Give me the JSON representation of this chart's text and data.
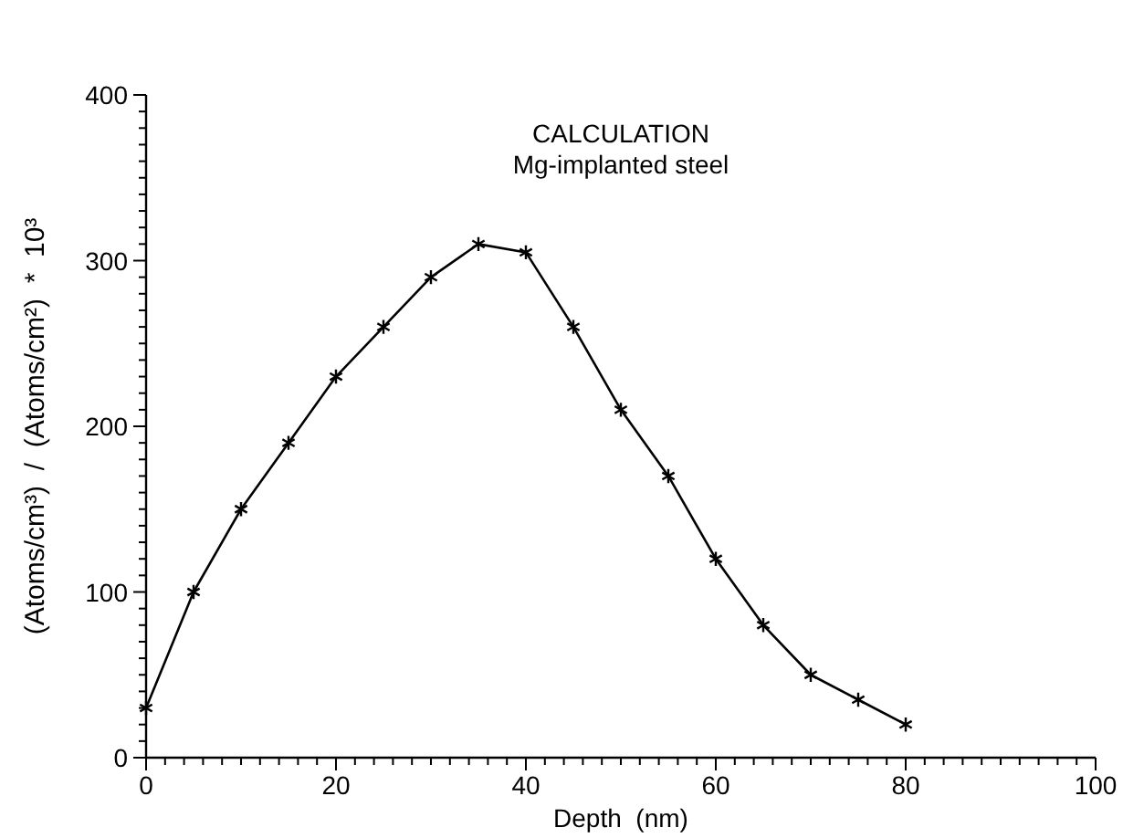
{
  "chart_data": {
    "type": "line",
    "title": "CALCULATION",
    "subtitle": "Mg-implanted steel",
    "xlabel": "Depth  (nm)",
    "ylabel": "(Atoms/cm³)  /  (Atoms/cm²)  *  10³",
    "x": [
      0,
      5,
      10,
      15,
      20,
      25,
      30,
      35,
      40,
      45,
      50,
      55,
      60,
      65,
      70,
      75,
      80
    ],
    "series": [
      {
        "color": "#000000",
        "values": [
          30,
          100,
          150,
          190,
          230,
          260,
          290,
          310,
          305,
          260,
          210,
          170,
          120,
          80,
          50,
          35,
          20
        ]
      }
    ],
    "marker": "cross",
    "line_style": "solid",
    "grid": false,
    "xlim": [
      0,
      100
    ],
    "ylim": [
      0,
      400
    ],
    "xticks": [
      0,
      {
        "value": 2,
        "label": null
      },
      {
        "value": 4,
        "label": null
      },
      {
        "value": 6,
        "label": null
      },
      {
        "value": 8,
        "label": null
      },
      {
        "value": 10,
        "label": null
      },
      {
        "value": 12,
        "label": null
      },
      {
        "value": 14,
        "label": null
      },
      {
        "value": 16,
        "label": null
      },
      {
        "value": 18,
        "label": null
      },
      20,
      {
        "value": 22,
        "label": null
      },
      {
        "value": 24,
        "label": null
      },
      {
        "value": 26,
        "label": null
      },
      {
        "value": 28,
        "label": null
      },
      {
        "value": 30,
        "label": null
      },
      {
        "value": 32,
        "label": null
      },
      {
        "value": 34,
        "label": null
      },
      {
        "value": 36,
        "label": null
      },
      {
        "value": 38,
        "label": null
      },
      40,
      {
        "value": 42,
        "label": null
      },
      {
        "value": 44,
        "label": null
      },
      {
        "value": 46,
        "label": null
      },
      {
        "value": 48,
        "label": null
      },
      {
        "value": 50,
        "label": null
      },
      {
        "value": 52,
        "label": null
      },
      {
        "value": 54,
        "label": null
      },
      {
        "value": 56,
        "label": null
      },
      {
        "value": 58,
        "label": null
      },
      60,
      {
        "value": 62,
        "label": null
      },
      {
        "value": 64,
        "label": null
      },
      {
        "value": 66,
        "label": null
      },
      {
        "value": 68,
        "label": null
      },
      {
        "value": 70,
        "label": null
      },
      {
        "value": 72,
        "label": null
      },
      {
        "value": 74,
        "label": null
      },
      {
        "value": 76,
        "label": null
      },
      {
        "value": 78,
        "label": null
      },
      80,
      {
        "value": 82,
        "label": null
      },
      {
        "value": 84,
        "label": null
      },
      {
        "value": 86,
        "label": null
      },
      {
        "value": 88,
        "label": null
      },
      {
        "value": 90,
        "label": null
      },
      {
        "value": 92,
        "label": null
      },
      {
        "value": 94,
        "label": null
      },
      {
        "value": 96,
        "label": null
      },
      {
        "value": 98,
        "label": null
      },
      100
    ],
    "yticks": [
      0,
      {
        "value": 10,
        "label": null
      },
      {
        "value": 20,
        "label": null
      },
      {
        "value": 30,
        "label": null
      },
      {
        "value": 40,
        "label": null
      },
      {
        "value": 50,
        "label": null
      },
      {
        "value": 60,
        "label": null
      },
      {
        "value": 70,
        "label": null
      },
      {
        "value": 80,
        "label": null
      },
      {
        "value": 90,
        "label": null
      },
      100,
      {
        "value": 110,
        "label": null
      },
      {
        "value": 120,
        "label": null
      },
      {
        "value": 130,
        "label": null
      },
      {
        "value": 140,
        "label": null
      },
      {
        "value": 150,
        "label": null
      },
      {
        "value": 160,
        "label": null
      },
      {
        "value": 170,
        "label": null
      },
      {
        "value": 180,
        "label": null
      },
      {
        "value": 190,
        "label": null
      },
      200,
      {
        "value": 210,
        "label": null
      },
      {
        "value": 220,
        "label": null
      },
      {
        "value": 230,
        "label": null
      },
      {
        "value": 240,
        "label": null
      },
      {
        "value": 250,
        "label": null
      },
      {
        "value": 260,
        "label": null
      },
      {
        "value": 270,
        "label": null
      },
      {
        "value": 280,
        "label": null
      },
      {
        "value": 290,
        "label": null
      },
      300,
      {
        "value": 310,
        "label": null
      },
      {
        "value": 320,
        "label": null
      },
      {
        "value": 330,
        "label": null
      },
      {
        "value": 340,
        "label": null
      },
      {
        "value": 350,
        "label": null
      },
      {
        "value": 360,
        "label": null
      },
      {
        "value": 370,
        "label": null
      },
      {
        "value": 380,
        "label": null
      },
      {
        "value": 390,
        "label": null
      },
      400
    ]
  }
}
